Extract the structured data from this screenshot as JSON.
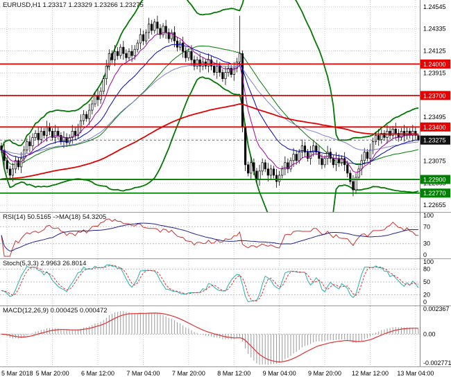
{
  "chart": {
    "title": "EURUSD,H1 1.23317 1.23329 1.23266 1.23275",
    "rsi_label": "RSI(14) 50.5165 ->MA(18) 54.3205",
    "stoch_label": "Stoch(5,3,3) 2.9963 26.8014",
    "macd_label": "MACD(12,26,9) 0.000425 0.000472"
  },
  "chart_data": {
    "type": "candlestick",
    "symbol": "EURUSD",
    "timeframe": "H1",
    "last_ohlc": {
      "open": 1.23317,
      "high": 1.23329,
      "low": 1.23266,
      "close": 1.23275
    },
    "y_axis": {
      "min": 1.2259,
      "max": 1.2461,
      "tick_labels": [
        "1.24545",
        "1.24335",
        "1.24125",
        "1.23915",
        "1.23705",
        "1.23495",
        "1.23285",
        "1.23075",
        "1.22865",
        "1.22655"
      ]
    },
    "x_axis": {
      "labels": [
        {
          "text": "5 Mar 2018",
          "bar": 2
        },
        {
          "text": "5 Mar 20:00",
          "bar": 18
        },
        {
          "text": "6 Mar 12:00",
          "bar": 34
        },
        {
          "text": "7 Mar 04:00",
          "bar": 50
        },
        {
          "text": "7 Mar 20:00",
          "bar": 66
        },
        {
          "text": "8 Mar 12:00",
          "bar": 82
        },
        {
          "text": "9 Mar 04:00",
          "bar": 98
        },
        {
          "text": "9 Mar 20:00",
          "bar": 114
        },
        {
          "text": "12 Mar 12:00",
          "bar": 130
        },
        {
          "text": "13 Mar 04:00",
          "bar": 146
        }
      ]
    },
    "levels": {
      "resistance": [
        {
          "price": 1.24,
          "label": "1.24000"
        },
        {
          "price": 1.237,
          "label": "1.23700"
        },
        {
          "price": 1.234,
          "label": "1.23400"
        }
      ],
      "support": [
        {
          "price": 1.229,
          "label": "1.22900"
        },
        {
          "price": 1.2277,
          "label": "1.22770"
        }
      ]
    },
    "current_price": {
      "price": 1.23275,
      "label": "1.23275"
    },
    "indicators": {
      "bollinger": {
        "period": 34,
        "deviation": 2.5,
        "color": "#007800"
      },
      "ma_fast": {
        "period": 9,
        "color": "#a000a0"
      },
      "ma_mid": {
        "period": 21,
        "color": "#0000c0"
      },
      "ma_slow": {
        "period": 45,
        "color": "#8080d0"
      },
      "ma_long": {
        "period": 130,
        "seed": 1.229,
        "color": "#e00000"
      },
      "rsi": {
        "period": 14,
        "ma_period": 18,
        "value": 50.5165,
        "ma_value": 54.3205,
        "axis": [
          "100",
          "70",
          "30",
          "0"
        ],
        "levels": [
          70,
          30
        ],
        "color": "#d03030",
        "ma_color": "#202090"
      },
      "stoch": {
        "k": 5,
        "d": 3,
        "slowing": 3,
        "value": 2.9963,
        "signal": 26.8014,
        "axis": [
          "100",
          "80",
          "50",
          "20",
          "0"
        ],
        "levels": [
          80,
          50,
          20
        ],
        "k_color": "#20b2aa",
        "d_color": "#e03030"
      },
      "macd": {
        "fast": 12,
        "slow": 26,
        "signal": 9,
        "value": 0.000425,
        "signal_value": 0.000472,
        "axis": [
          {
            "v": 0.002367,
            "t": "0.002367"
          },
          {
            "v": 0,
            "t": "0.00"
          },
          {
            "v": -0.002771,
            "t": "-0.002771"
          }
        ],
        "range": [
          -0.00285,
          0.0025
        ],
        "hist_color": "#999999",
        "line_color": "#e03030"
      }
    },
    "colors": {
      "bull": "#ffffff",
      "bear": "#000000",
      "outline": "#000000",
      "grid": "#c9c9c9",
      "axis_line": "#808080",
      "res_color": "#e60000",
      "sup_color": "#008000",
      "tag_text": "#ffffff",
      "cur_tag_bg": "#111111",
      "bg": "#ffffff"
    },
    "candles": [
      [
        1.2322,
        1.2325,
        1.2315,
        1.2318
      ],
      [
        1.2318,
        1.2324,
        1.2302,
        1.2308
      ],
      [
        1.2308,
        1.2312,
        1.2296,
        1.23
      ],
      [
        1.23,
        1.2303,
        1.2291,
        1.2294
      ],
      [
        1.2294,
        1.2306,
        1.2288,
        1.23
      ],
      [
        1.23,
        1.2312,
        1.2296,
        1.2308
      ],
      [
        1.2308,
        1.2311,
        1.2299,
        1.2302
      ],
      [
        1.2302,
        1.2316,
        1.2296,
        1.231
      ],
      [
        1.231,
        1.2322,
        1.2306,
        1.2318
      ],
      [
        1.2318,
        1.2329,
        1.2315,
        1.2326
      ],
      [
        1.2326,
        1.2332,
        1.2316,
        1.2322
      ],
      [
        1.2322,
        1.2334,
        1.2318,
        1.233
      ],
      [
        1.233,
        1.2337,
        1.2327,
        1.2334
      ],
      [
        1.2334,
        1.234,
        1.2322,
        1.2328
      ],
      [
        1.2328,
        1.234,
        1.2324,
        1.2336
      ],
      [
        1.2336,
        1.2339,
        1.2329,
        1.2332
      ],
      [
        1.2332,
        1.2346,
        1.2326,
        1.234
      ],
      [
        1.234,
        1.2344,
        1.2332,
        1.2336
      ],
      [
        1.2336,
        1.2339,
        1.2327,
        1.233
      ],
      [
        1.233,
        1.2342,
        1.2324,
        1.2336
      ],
      [
        1.2336,
        1.234,
        1.2328,
        1.2332
      ],
      [
        1.2332,
        1.2335,
        1.2323,
        1.2326
      ],
      [
        1.2326,
        1.2336,
        1.232,
        1.233
      ],
      [
        1.233,
        1.2334,
        1.2321,
        1.2325
      ],
      [
        1.2325,
        1.2333,
        1.2322,
        1.233
      ],
      [
        1.233,
        1.2342,
        1.2324,
        1.2336
      ],
      [
        1.2336,
        1.234,
        1.2328,
        1.2332
      ],
      [
        1.2332,
        1.2343,
        1.2329,
        1.234
      ],
      [
        1.234,
        1.2352,
        1.2334,
        1.2346
      ],
      [
        1.2346,
        1.2356,
        1.2342,
        1.2352
      ],
      [
        1.2352,
        1.2355,
        1.2345,
        1.2348
      ],
      [
        1.2348,
        1.2362,
        1.2342,
        1.2356
      ],
      [
        1.2356,
        1.2366,
        1.2352,
        1.2362
      ],
      [
        1.2362,
        1.2373,
        1.2359,
        1.237
      ],
      [
        1.237,
        1.2376,
        1.236,
        1.2366
      ],
      [
        1.2366,
        1.2378,
        1.2362,
        1.2374
      ],
      [
        1.2374,
        1.2389,
        1.2371,
        1.2386
      ],
      [
        1.2386,
        1.2404,
        1.238,
        1.2398
      ],
      [
        1.2398,
        1.2414,
        1.2394,
        1.241
      ],
      [
        1.241,
        1.2413,
        1.2401,
        1.2404
      ],
      [
        1.2404,
        1.2418,
        1.2398,
        1.2412
      ],
      [
        1.2412,
        1.2416,
        1.2404,
        1.2408
      ],
      [
        1.2408,
        1.2419,
        1.2405,
        1.2416
      ],
      [
        1.2416,
        1.2422,
        1.2404,
        1.241
      ],
      [
        1.241,
        1.2414,
        1.2402,
        1.2406
      ],
      [
        1.2406,
        1.2415,
        1.2403,
        1.2412
      ],
      [
        1.2412,
        1.2418,
        1.2402,
        1.2408
      ],
      [
        1.2408,
        1.2418,
        1.2404,
        1.2414
      ],
      [
        1.2414,
        1.2423,
        1.2411,
        1.242
      ],
      [
        1.242,
        1.2434,
        1.2414,
        1.2428
      ],
      [
        1.2428,
        1.2432,
        1.2418,
        1.2422
      ],
      [
        1.2422,
        1.2433,
        1.2419,
        1.243
      ],
      [
        1.243,
        1.2444,
        1.2424,
        1.2438
      ],
      [
        1.2438,
        1.2442,
        1.2428,
        1.2432
      ],
      [
        1.2432,
        1.2443,
        1.2429,
        1.244
      ],
      [
        1.244,
        1.2446,
        1.2428,
        1.2434
      ],
      [
        1.2434,
        1.2438,
        1.2424,
        1.2428
      ],
      [
        1.2428,
        1.2439,
        1.2425,
        1.2436
      ],
      [
        1.2436,
        1.2442,
        1.2424,
        1.243
      ],
      [
        1.243,
        1.2434,
        1.242,
        1.2424
      ],
      [
        1.2424,
        1.2433,
        1.2421,
        1.243
      ],
      [
        1.243,
        1.2436,
        1.2416,
        1.2422
      ],
      [
        1.2422,
        1.2426,
        1.2412,
        1.2416
      ],
      [
        1.2416,
        1.2423,
        1.2413,
        1.242
      ],
      [
        1.242,
        1.2426,
        1.2406,
        1.2412
      ],
      [
        1.2412,
        1.2416,
        1.2402,
        1.2406
      ],
      [
        1.2406,
        1.2415,
        1.2403,
        1.2412
      ],
      [
        1.2412,
        1.2418,
        1.2398,
        1.2404
      ],
      [
        1.2404,
        1.2408,
        1.2394,
        1.2398
      ],
      [
        1.2398,
        1.2407,
        1.2395,
        1.2404
      ],
      [
        1.2404,
        1.241,
        1.2392,
        1.2398
      ],
      [
        1.2398,
        1.2406,
        1.2394,
        1.2402
      ],
      [
        1.2402,
        1.2405,
        1.2395,
        1.2398
      ],
      [
        1.2398,
        1.241,
        1.2392,
        1.2404
      ],
      [
        1.2404,
        1.2408,
        1.2394,
        1.2398
      ],
      [
        1.2398,
        1.2401,
        1.2389,
        1.2392
      ],
      [
        1.2392,
        1.2404,
        1.2386,
        1.2398
      ],
      [
        1.2398,
        1.2402,
        1.2388,
        1.2392
      ],
      [
        1.2392,
        1.2395,
        1.2383,
        1.2386
      ],
      [
        1.2386,
        1.2398,
        1.238,
        1.2392
      ],
      [
        1.2392,
        1.24,
        1.2388,
        1.2396
      ],
      [
        1.2396,
        1.2399,
        1.2387,
        1.239
      ],
      [
        1.239,
        1.2402,
        1.2384,
        1.2396
      ],
      [
        1.2396,
        1.2406,
        1.2392,
        1.2402
      ],
      [
        1.2402,
        1.2446,
        1.2398,
        1.241
      ],
      [
        1.241,
        1.2413,
        1.2335,
        1.234
      ],
      [
        1.234,
        1.2343,
        1.2298,
        1.2304
      ],
      [
        1.2304,
        1.2307,
        1.2293,
        1.2296
      ],
      [
        1.2296,
        1.2312,
        1.229,
        1.2306
      ],
      [
        1.2306,
        1.231,
        1.2294,
        1.2298
      ],
      [
        1.2298,
        1.2301,
        1.2287,
        1.229
      ],
      [
        1.229,
        1.2304,
        1.2284,
        1.2298
      ],
      [
        1.2298,
        1.231,
        1.2294,
        1.2306
      ],
      [
        1.2306,
        1.2309,
        1.2297,
        1.23
      ],
      [
        1.23,
        1.2306,
        1.2288,
        1.2294
      ],
      [
        1.2294,
        1.2304,
        1.229,
        1.23
      ],
      [
        1.23,
        1.2303,
        1.2291,
        1.2294
      ],
      [
        1.2294,
        1.23,
        1.2282,
        1.2288
      ],
      [
        1.2288,
        1.2298,
        1.2284,
        1.2294
      ],
      [
        1.2294,
        1.2303,
        1.2291,
        1.23
      ],
      [
        1.23,
        1.2312,
        1.2294,
        1.2306
      ],
      [
        1.2306,
        1.231,
        1.2296,
        1.23
      ],
      [
        1.23,
        1.2311,
        1.2297,
        1.2308
      ],
      [
        1.2308,
        1.232,
        1.2302,
        1.2314
      ],
      [
        1.2314,
        1.2318,
        1.2304,
        1.2308
      ],
      [
        1.2308,
        1.2319,
        1.2305,
        1.2316
      ],
      [
        1.2316,
        1.2328,
        1.231,
        1.2322
      ],
      [
        1.2322,
        1.2326,
        1.2312,
        1.2316
      ],
      [
        1.2316,
        1.2319,
        1.2307,
        1.231
      ],
      [
        1.231,
        1.2322,
        1.2304,
        1.2316
      ],
      [
        1.2316,
        1.2326,
        1.2312,
        1.2322
      ],
      [
        1.2322,
        1.2325,
        1.2313,
        1.2316
      ],
      [
        1.2316,
        1.2322,
        1.2304,
        1.231
      ],
      [
        1.231,
        1.2314,
        1.23,
        1.2304
      ],
      [
        1.2304,
        1.2313,
        1.2301,
        1.231
      ],
      [
        1.231,
        1.2322,
        1.2304,
        1.2316
      ],
      [
        1.2316,
        1.232,
        1.2306,
        1.231
      ],
      [
        1.231,
        1.2313,
        1.2301,
        1.2304
      ],
      [
        1.2304,
        1.2316,
        1.2298,
        1.231
      ],
      [
        1.231,
        1.2314,
        1.2302,
        1.2306
      ],
      [
        1.2306,
        1.2313,
        1.2303,
        1.231
      ],
      [
        1.231,
        1.2316,
        1.2298,
        1.2304
      ],
      [
        1.2304,
        1.2308,
        1.2292,
        1.2296
      ],
      [
        1.2296,
        1.2299,
        1.2285,
        1.2288
      ],
      [
        1.2288,
        1.2294,
        1.2274,
        1.228
      ],
      [
        1.228,
        1.2296,
        1.2276,
        1.2292
      ],
      [
        1.2292,
        1.2303,
        1.2289,
        1.23
      ],
      [
        1.23,
        1.2314,
        1.2294,
        1.2308
      ],
      [
        1.2308,
        1.232,
        1.2304,
        1.2316
      ],
      [
        1.2316,
        1.2319,
        1.2307,
        1.231
      ],
      [
        1.231,
        1.2324,
        1.2304,
        1.2318
      ],
      [
        1.2318,
        1.233,
        1.2314,
        1.2326
      ],
      [
        1.2326,
        1.2335,
        1.2323,
        1.2332
      ],
      [
        1.2332,
        1.2338,
        1.2322,
        1.2328
      ],
      [
        1.2328,
        1.2338,
        1.2324,
        1.2334
      ],
      [
        1.2334,
        1.2337,
        1.2327,
        1.233
      ],
      [
        1.233,
        1.2342,
        1.2324,
        1.2336
      ],
      [
        1.2336,
        1.234,
        1.2328,
        1.2332
      ],
      [
        1.2332,
        1.2341,
        1.2329,
        1.2338
      ],
      [
        1.2338,
        1.2344,
        1.2328,
        1.2334
      ],
      [
        1.2334,
        1.2338,
        1.2326,
        1.233
      ],
      [
        1.233,
        1.2339,
        1.2327,
        1.2336
      ],
      [
        1.2336,
        1.2342,
        1.2326,
        1.2332
      ],
      [
        1.2332,
        1.234,
        1.2328,
        1.2336
      ],
      [
        1.2336,
        1.2339,
        1.2329,
        1.2332
      ],
      [
        1.2332,
        1.2342,
        1.2326,
        1.2336
      ],
      [
        1.2336,
        1.234,
        1.2328,
        1.2332
      ],
      [
        1.23317,
        1.23329,
        1.23266,
        1.23275
      ]
    ]
  }
}
